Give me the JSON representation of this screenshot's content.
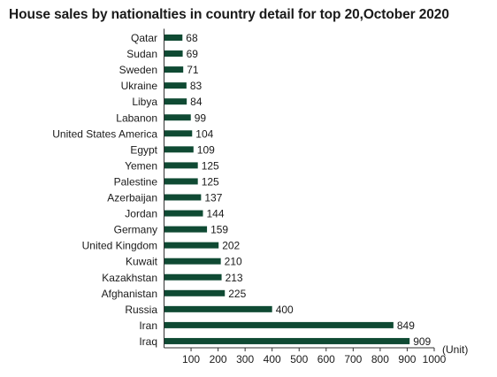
{
  "chart_data": {
    "type": "bar",
    "orientation": "horizontal",
    "title": "House sales by nationalties in country detail for top 20,October 2020",
    "xlabel": "(Unit)",
    "ylabel": "",
    "xlim": [
      0,
      1000
    ],
    "x_ticks": [
      "100",
      "200",
      "300",
      "400",
      "500",
      "600",
      "700",
      "800",
      "900",
      "1000"
    ],
    "grid": false,
    "bar_color": "#0f4a33",
    "categories": [
      "Qatar",
      "Sudan",
      "Sweden",
      "Ukraine",
      "Libya",
      "Labanon",
      "United States America",
      "Egypt",
      "Yemen",
      "Palestine",
      "Azerbaijan",
      "Jordan",
      "Germany",
      "United Kingdom",
      "Kuwait",
      "Kazakhstan",
      "Afghanistan",
      "Russia",
      "Iran",
      "Iraq"
    ],
    "values": [
      68,
      69,
      71,
      83,
      84,
      99,
      104,
      109,
      125,
      125,
      137,
      144,
      159,
      202,
      210,
      213,
      225,
      400,
      849,
      909
    ],
    "data_labels": [
      "68",
      "69",
      "71",
      "83",
      "84",
      "99",
      "104",
      "109",
      "125",
      "125",
      "137",
      "144",
      "159",
      "202",
      "210",
      "213",
      "225",
      "400",
      "849",
      "909"
    ]
  }
}
